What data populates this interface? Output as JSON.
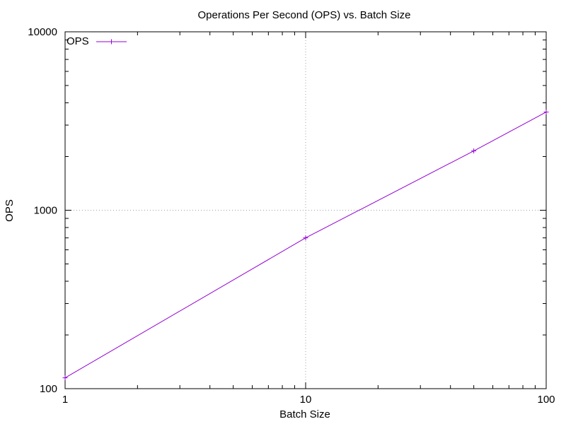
{
  "chart_data": {
    "type": "line",
    "title": "Operations Per Second (OPS) vs. Batch Size",
    "xlabel": "Batch Size",
    "ylabel": "OPS",
    "x_scale": "log",
    "y_scale": "log",
    "xlim": [
      1,
      100
    ],
    "ylim": [
      100,
      10000
    ],
    "grid": true,
    "legend": "top-left",
    "x_ticks": [
      {
        "value": 1,
        "label": "1"
      },
      {
        "value": 10,
        "label": "10"
      },
      {
        "value": 100,
        "label": "100"
      }
    ],
    "y_ticks": [
      {
        "value": 100,
        "label": "100"
      },
      {
        "value": 1000,
        "label": "1000"
      },
      {
        "value": 10000,
        "label": "10000"
      }
    ],
    "series": [
      {
        "name": "OPS",
        "color": "#9400d3",
        "x": [
          1,
          10,
          50,
          100
        ],
        "y": [
          115,
          700,
          2150,
          3550
        ]
      }
    ]
  }
}
